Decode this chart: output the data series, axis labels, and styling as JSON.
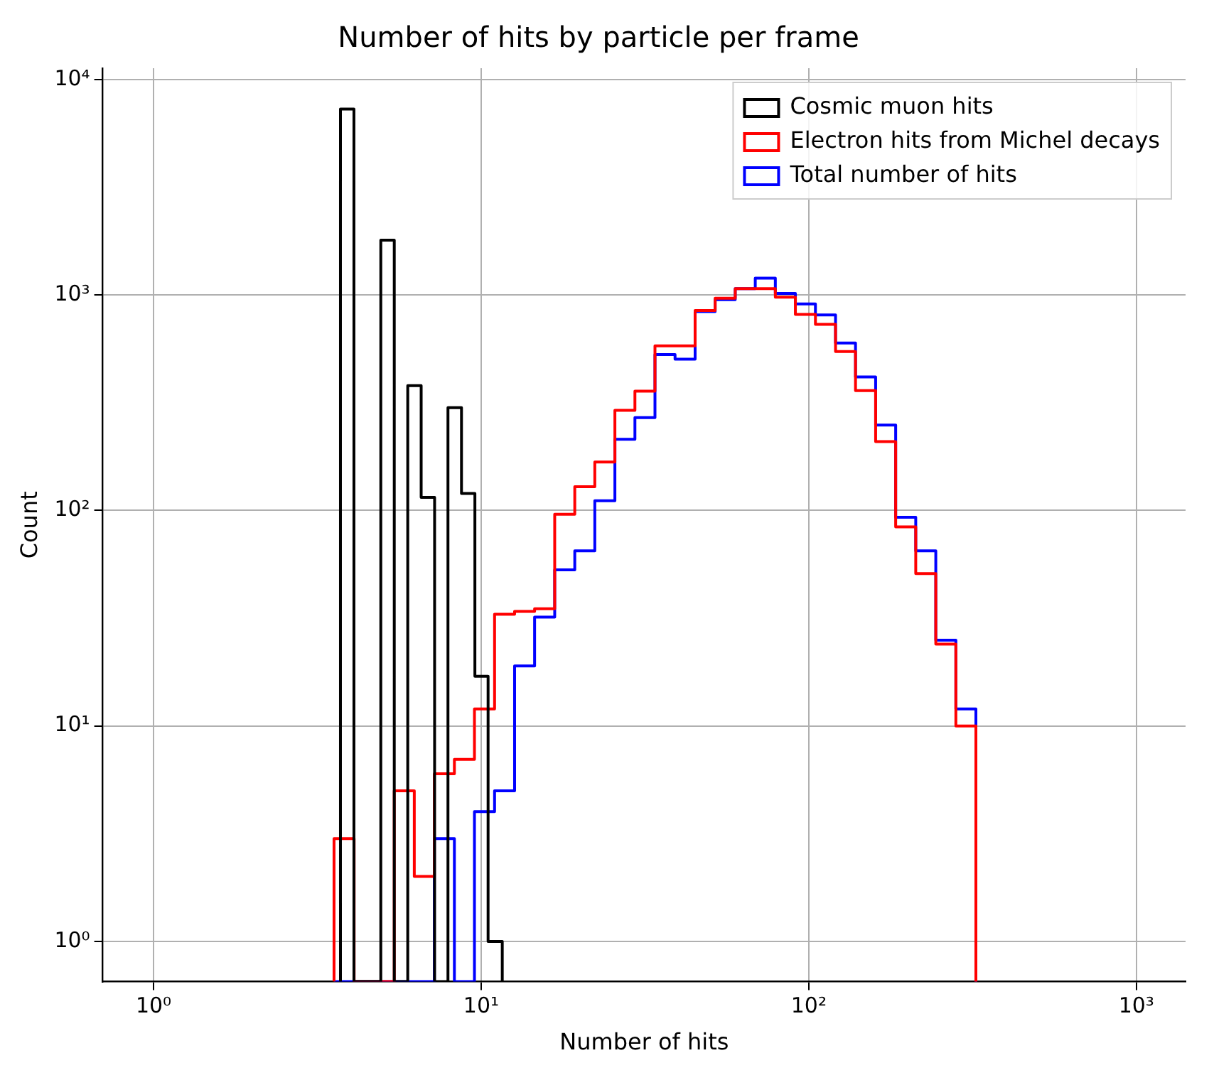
{
  "chart_data": {
    "type": "histogram",
    "title": "Number of hits by particle per frame",
    "xlabel": "Number of hits",
    "ylabel": "Count",
    "bins": [
      3.556,
      4.095,
      4.715,
      5.429,
      6.251,
      7.197,
      8.286,
      9.541,
      10.99,
      12.65,
      14.56,
      16.77,
      19.31,
      22.23,
      25.6,
      29.47,
      33.93,
      39.07,
      44.99,
      51.79,
      59.64,
      68.66,
      79.06,
      91.03,
      104.8,
      120.7,
      138.9,
      160.0,
      184.2,
      212.1,
      244.2,
      281.2,
      323.7
    ],
    "series": [
      {
        "name": "Cosmic muon hits",
        "color": "#000000",
        "bins": [
          3.72,
          4.09,
          4.5,
          4.94,
          5.43,
          5.97,
          6.56,
          7.21,
          7.92,
          8.71,
          9.57,
          10.5,
          11.6
        ],
        "values": [
          7300,
          null,
          null,
          1800,
          null,
          380,
          115,
          null,
          300,
          120,
          17,
          1
        ]
      },
      {
        "name": "Electron hits from Michel decays",
        "color": "#ff0000",
        "values": [
          3,
          null,
          null,
          5,
          2,
          6,
          7,
          12,
          33,
          34,
          35,
          96,
          129,
          168,
          292,
          358,
          581,
          581,
          848,
          967,
          1071,
          1071,
          977,
          813,
          731,
          547,
          360,
          209,
          84,
          51,
          24,
          10
        ]
      },
      {
        "name": "Total number of hits",
        "color": "#0000ff",
        "values": [
          null,
          null,
          null,
          null,
          null,
          3,
          null,
          4,
          5,
          19,
          32,
          53,
          65,
          111,
          214,
          270,
          530,
          504,
          839,
          953,
          1071,
          1198,
          1018,
          910,
          809,
          599,
          417,
          249,
          93,
          65,
          25,
          12
        ]
      }
    ],
    "xlim": [
      0.708,
      1413
    ],
    "ylim": [
      0.65,
      11300
    ],
    "xticks": [
      {
        "value": 1,
        "label": "10⁰"
      },
      {
        "value": 10,
        "label": "10¹"
      },
      {
        "value": 100,
        "label": "10²"
      },
      {
        "value": 1000,
        "label": "10³"
      }
    ],
    "yticks": [
      {
        "value": 1,
        "label": "10⁰"
      },
      {
        "value": 10,
        "label": "10¹"
      },
      {
        "value": 100,
        "label": "10²"
      },
      {
        "value": 1000,
        "label": "10³"
      },
      {
        "value": 10000,
        "label": "10⁴"
      }
    ],
    "log": "xy",
    "grid": true,
    "legend": "top right"
  }
}
